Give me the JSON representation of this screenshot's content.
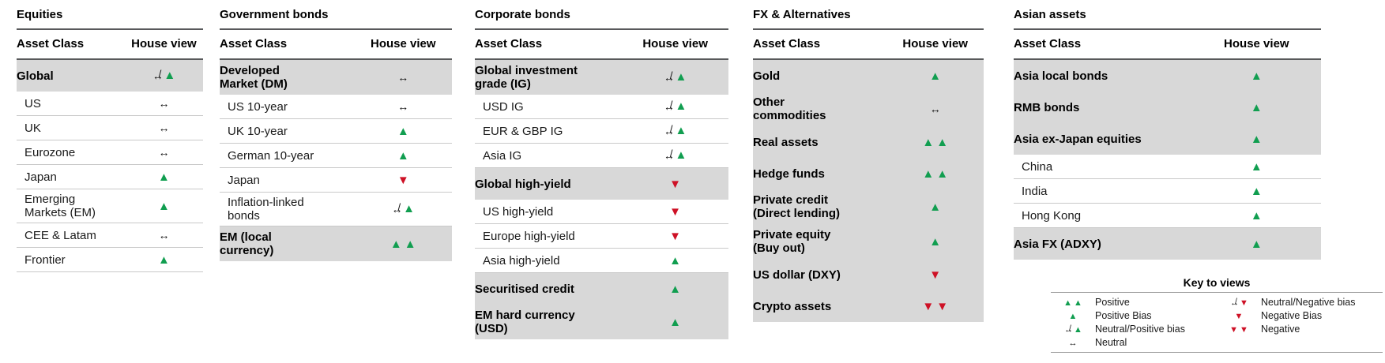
{
  "colors": {
    "positive_green": "#119E50",
    "negative_red": "#CE1126",
    "row_shade_gray": "#D8D8D8",
    "rule_dark": "#58595B"
  },
  "columns": {
    "asset_class": "Asset Class",
    "house_view": "House view"
  },
  "glyphs": {
    "up": "▲",
    "down": "▼",
    "arrow": "↔",
    "slash": "/"
  },
  "view_defs": {
    "positive": {
      "parts": [
        "up",
        "up"
      ],
      "name": "double-up-triangle-icon"
    },
    "positive_bias": {
      "parts": [
        "up"
      ],
      "name": "up-triangle-icon"
    },
    "neutral_positive_bias": {
      "parts": [
        "arrow_slash",
        "up"
      ],
      "name": "neutral-slash-up-triangle-icon"
    },
    "neutral": {
      "parts": [
        "arrow"
      ],
      "name": "left-right-arrow-icon"
    },
    "neutral_negative_bias": {
      "parts": [
        "arrow_slash",
        "down"
      ],
      "name": "neutral-slash-down-triangle-icon"
    },
    "negative_bias": {
      "parts": [
        "down"
      ],
      "name": "down-triangle-icon"
    },
    "negative": {
      "parts": [
        "down",
        "down"
      ],
      "name": "double-down-triangle-icon"
    }
  },
  "tables": [
    {
      "id": "equities",
      "title": "Equities",
      "rows": [
        {
          "label": "Global",
          "view": "neutral_positive_bias",
          "bold": true,
          "shaded": true
        },
        {
          "label": "US",
          "view": "neutral"
        },
        {
          "label": "UK",
          "view": "neutral"
        },
        {
          "label": "Eurozone",
          "view": "neutral"
        },
        {
          "label": "Japan",
          "view": "positive_bias"
        },
        {
          "label": "Emerging\nMarkets (EM)",
          "view": "positive_bias"
        },
        {
          "label": "CEE & Latam",
          "view": "neutral"
        },
        {
          "label": "Frontier",
          "view": "positive_bias"
        }
      ]
    },
    {
      "id": "government-bonds",
      "title": "Government bonds",
      "rows": [
        {
          "label": "Developed\nMarket (DM)",
          "view": "neutral",
          "bold": true,
          "shaded": true
        },
        {
          "label": "US 10-year",
          "view": "neutral"
        },
        {
          "label": "UK 10-year",
          "view": "positive_bias"
        },
        {
          "label": "German 10-year",
          "view": "positive_bias"
        },
        {
          "label": "Japan",
          "view": "negative_bias"
        },
        {
          "label": "Inflation-linked\nbonds",
          "view": "neutral_positive_bias"
        },
        {
          "label": "EM (local\ncurrency)",
          "view": "positive",
          "bold": true,
          "shaded": true
        }
      ]
    },
    {
      "id": "corporate-bonds",
      "title": "Corporate bonds",
      "rows": [
        {
          "label": "Global investment\ngrade (IG)",
          "view": "neutral_positive_bias",
          "bold": true,
          "shaded": true
        },
        {
          "label": "USD IG",
          "view": "neutral_positive_bias"
        },
        {
          "label": "EUR & GBP IG",
          "view": "neutral_positive_bias"
        },
        {
          "label": "Asia IG",
          "view": "neutral_positive_bias"
        },
        {
          "label": "Global high-yield",
          "view": "negative_bias",
          "bold": true,
          "shaded": true
        },
        {
          "label": "US high-yield",
          "view": "negative_bias"
        },
        {
          "label": "Europe high-yield",
          "view": "negative_bias"
        },
        {
          "label": "Asia high-yield",
          "view": "positive_bias"
        },
        {
          "label": "Securitised credit",
          "view": "positive_bias",
          "bold": true,
          "shaded": true
        },
        {
          "label": "EM hard currency\n(USD)",
          "view": "positive_bias",
          "bold": true,
          "shaded": true
        }
      ]
    },
    {
      "id": "fx-and-alternatives",
      "title": "FX & Alternatives",
      "rows": [
        {
          "label": "Gold",
          "view": "positive_bias",
          "bold": true,
          "shaded": true
        },
        {
          "label": "Other\ncommodities",
          "view": "neutral",
          "bold": true,
          "shaded": true
        },
        {
          "label": "Real assets",
          "view": "positive",
          "bold": true,
          "shaded": true
        },
        {
          "label": "Hedge funds",
          "view": "positive",
          "bold": true,
          "shaded": true
        },
        {
          "label": "Private credit\n(Direct lending)",
          "view": "positive_bias",
          "bold": true,
          "shaded": true
        },
        {
          "label": "Private equity\n(Buy out)",
          "view": "positive_bias",
          "bold": true,
          "shaded": true
        },
        {
          "label": "US dollar (DXY)",
          "view": "negative_bias",
          "bold": true,
          "shaded": true
        },
        {
          "label": "Crypto assets",
          "view": "negative",
          "bold": true,
          "shaded": true
        }
      ]
    },
    {
      "id": "asian-assets",
      "title": "Asian assets",
      "rows": [
        {
          "label": "Asia local bonds",
          "view": "positive_bias",
          "bold": true,
          "shaded": true
        },
        {
          "label": "RMB bonds",
          "view": "positive_bias",
          "bold": true,
          "shaded": true
        },
        {
          "label": "Asia ex-Japan equities",
          "view": "positive_bias",
          "bold": true,
          "shaded": true
        },
        {
          "label": "China",
          "view": "positive_bias"
        },
        {
          "label": "India",
          "view": "positive_bias"
        },
        {
          "label": "Hong Kong",
          "view": "positive_bias"
        },
        {
          "label": "Asia FX (ADXY)",
          "view": "positive_bias",
          "bold": true,
          "shaded": true
        }
      ]
    }
  ],
  "legend": {
    "title": "Key to views",
    "left": [
      {
        "view": "positive",
        "label": "Positive"
      },
      {
        "view": "positive_bias",
        "label": "Positive Bias"
      },
      {
        "view": "neutral_positive_bias",
        "label": "Neutral/Positive bias"
      },
      {
        "view": "neutral",
        "label": "Neutral"
      }
    ],
    "right": [
      {
        "view": "neutral_negative_bias",
        "label": "Neutral/Negative bias"
      },
      {
        "view": "negative_bias",
        "label": "Negative Bias"
      },
      {
        "view": "negative",
        "label": "Negative"
      }
    ]
  }
}
